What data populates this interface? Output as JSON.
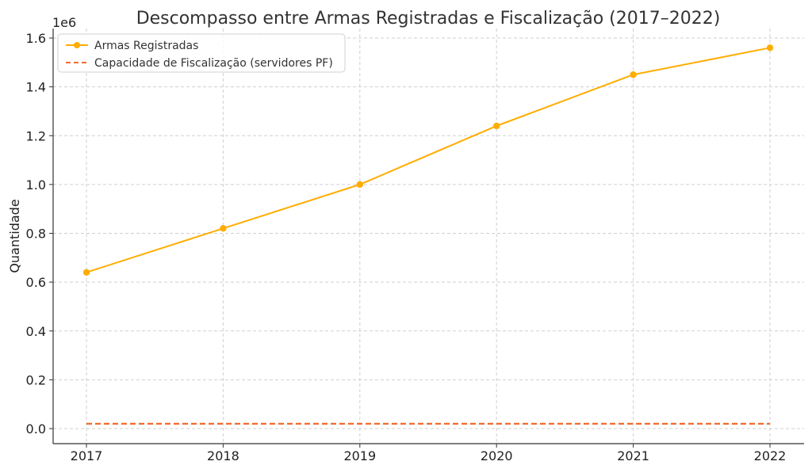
{
  "chart_data": {
    "type": "line",
    "title": "Descompasso entre Armas Registradas e Fiscalização (2017–2022)",
    "ylabel": "Quantidade",
    "xlabel": "",
    "y_scale_label": "1e6",
    "x": [
      2017,
      2018,
      2019,
      2020,
      2021,
      2022
    ],
    "x_tick_labels": [
      "2017",
      "2018",
      "2019",
      "2020",
      "2021",
      "2022"
    ],
    "ylim": [
      0,
      1640000
    ],
    "y_ticks": [
      0,
      200000,
      400000,
      600000,
      800000,
      1000000,
      1200000,
      1400000,
      1600000
    ],
    "y_tick_labels": [
      "0.0",
      "0.2",
      "0.4",
      "0.6",
      "0.8",
      "1.0",
      "1.2",
      "1.4",
      "1.6"
    ],
    "grid": true,
    "legend_position": "top-left",
    "series": [
      {
        "name": "Armas Registradas",
        "values": [
          640000,
          820000,
          1000000,
          1240000,
          1450000,
          1560000
        ],
        "color": "#FFAD00",
        "style": "solid",
        "markers": true
      },
      {
        "name": "Capacidade de Fiscalização (servidores PF)",
        "values": [
          20000,
          20000,
          20000,
          20000,
          20000,
          20000
        ],
        "color": "#F26B2D",
        "style": "dashed",
        "markers": false
      }
    ]
  }
}
